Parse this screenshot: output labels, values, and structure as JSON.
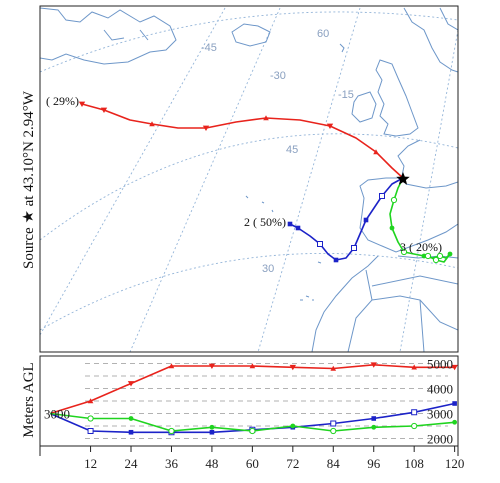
{
  "figure": {
    "map_ylabel": "Source ★ at 43.10°N 2.94°W",
    "alt_ylabel": "Meters AGL",
    "colors": {
      "traj1": "#e8231c",
      "traj2": "#1c23c8",
      "traj3": "#1fd41f",
      "coast": "#6e97c9",
      "graticule": "#93b4d8",
      "altgrid": "#999999"
    }
  },
  "map": {
    "graticule_labels": [
      "-45",
      "-30",
      "-15",
      "60",
      "45",
      "30"
    ],
    "trajectory_labels": [
      "( 29%)",
      "2 ( 50%)",
      "3 ( 20%)"
    ],
    "source_marker": "black-star-icon"
  },
  "chart_data": {
    "type": "line",
    "x": [
      0,
      12,
      24,
      36,
      48,
      60,
      72,
      84,
      96,
      108,
      120
    ],
    "xticks": [
      "12",
      "24",
      "36",
      "48",
      "60",
      "72",
      "84",
      "96",
      "108",
      "120"
    ],
    "xlim": [
      -3,
      121
    ],
    "ylim": [
      1700,
      5300
    ],
    "left_tick": "3000",
    "right_ticks": [
      "5000",
      "4000",
      "3000",
      "2000"
    ],
    "series": [
      {
        "color": "#e8231c",
        "values": [
          3000,
          3500,
          4200,
          4900,
          4900,
          4900,
          4850,
          4800,
          4950,
          4850,
          4850
        ]
      },
      {
        "color": "#1c23c8",
        "values": [
          3000,
          2300,
          2250,
          2250,
          2250,
          2350,
          2450,
          2600,
          2800,
          3050,
          3400
        ]
      },
      {
        "color": "#1fd41f",
        "values": [
          3000,
          2800,
          2800,
          2300,
          2450,
          2300,
          2500,
          2300,
          2450,
          2500,
          2650
        ]
      }
    ]
  }
}
